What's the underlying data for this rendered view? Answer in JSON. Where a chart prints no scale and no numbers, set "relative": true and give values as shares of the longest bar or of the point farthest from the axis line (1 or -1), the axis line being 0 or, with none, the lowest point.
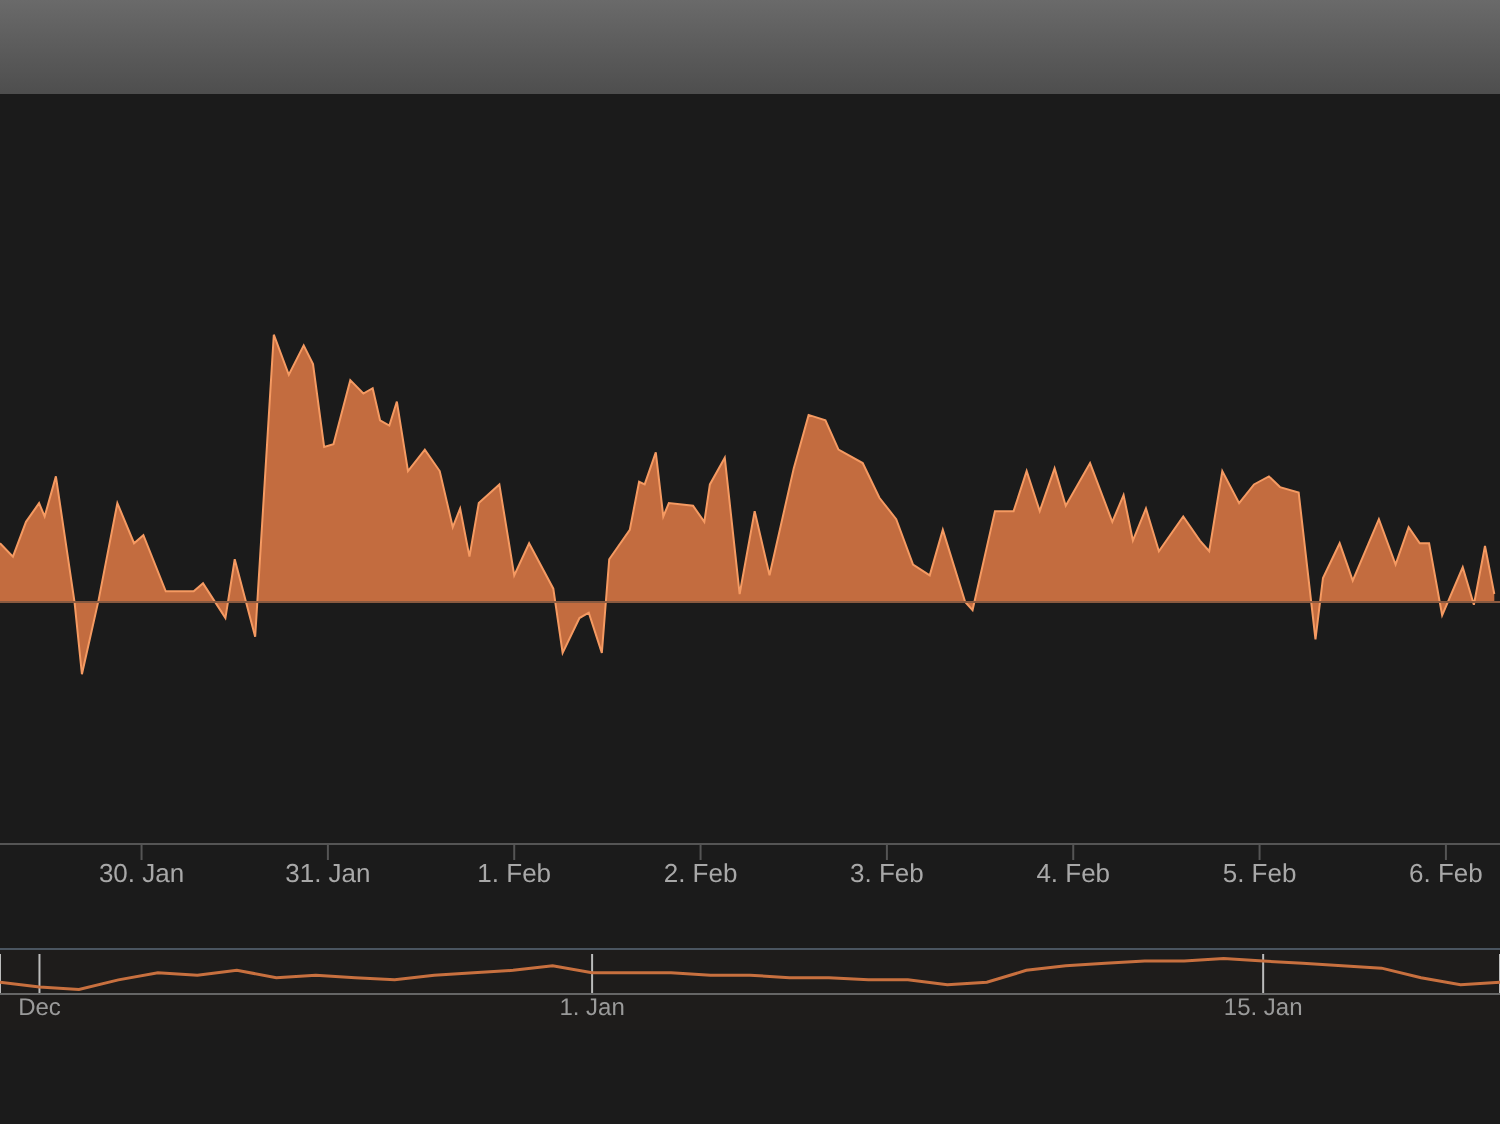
{
  "chart_data": [
    {
      "type": "area",
      "relative": true,
      "color": "#e07a45",
      "legend": false,
      "grid": false,
      "ref_lines": [
        {
          "axis": "y",
          "value": 0,
          "color": "#8a5a40"
        }
      ],
      "x": [
        "--01-29T05:46",
        "--01-29T07:26",
        "--01-29T09:07",
        "--01-29T10:48",
        "--01-29T11:31",
        "--01-29T12:58",
        "--01-29T15:22",
        "--01-29T16:19",
        "--01-29T18:29",
        "--01-29T20:53",
        "--01-29T23:02",
        "--01-30T00:14",
        "--01-30T03:07",
        "--01-30T06:43",
        "--01-30T07:55",
        "--01-30T10:48",
        "--01-30T12:00",
        "--01-30T14:38",
        "--01-30T17:02",
        "--01-30T18:58",
        "--01-30T20:53",
        "--01-30T22:05",
        "--01-30T23:31",
        "--01-31T00:43",
        "--01-31T02:53",
        "--01-31T04:34",
        "--01-31T05:46",
        "--01-31T06:43",
        "--01-31T07:55",
        "--01-31T08:53",
        "--01-31T10:19",
        "--01-31T12:29",
        "--01-31T14:24",
        "--01-31T16:05",
        "--01-31T17:02",
        "--01-31T18:14",
        "--01-31T19:26",
        "--01-31T22:05",
        "--02-01T00:00",
        "--02-01T01:55",
        "--02-01T05:02",
        "--02-01T06:14",
        "--02-01T08:24",
        "--02-01T09:36",
        "--02-01T11:17",
        "--02-01T12:14",
        "--02-01T14:53",
        "--02-01T16:05",
        "--02-01T16:48",
        "--02-01T18:14",
        "--02-01T19:12",
        "--02-01T19:55",
        "--02-01T23:02",
        "--02-02T00:29",
        "--02-02T01:12",
        "--02-02T03:07",
        "--02-02T05:02",
        "--02-02T06:58",
        "--02-02T08:53",
        "--02-02T12:00",
        "--02-02T13:55",
        "--02-02T16:05",
        "--02-02T17:46",
        "--02-02T20:53",
        "--02-02T23:02",
        "--02-03T01:12",
        "--02-03T03:22",
        "--02-03T05:31",
        "--02-03T07:12",
        "--02-03T10:05",
        "--02-03T11:02",
        "--02-03T13:55",
        "--02-03T16:19",
        "--02-03T18:00",
        "--02-03T19:41",
        "--02-03T21:36",
        "--02-03T23:02",
        "--02-04T02:10",
        "--02-04T05:02",
        "--02-04T06:29",
        "--02-04T07:41",
        "--02-04T09:22",
        "--02-04T11:02",
        "--02-04T14:10",
        "--02-04T16:19",
        "--02-04T17:31",
        "--02-04T19:12",
        "--02-04T21:22",
        "--02-04T23:17",
        "--02-05T01:12",
        "--02-05T02:38",
        "--02-05T05:02",
        "--02-05T07:12",
        "--02-05T08:10",
        "--02-05T10:19",
        "--02-05T12:00",
        "--02-05T15:22",
        "--02-05T17:31",
        "--02-05T19:12",
        "--02-05T20:38",
        "--02-05T21:50",
        "--02-05T23:31",
        "--02-06T02:10",
        "--02-06T03:36",
        "--02-06T05:02",
        "--02-06T06:14"
      ],
      "values": [
        0.22,
        0.17,
        0.3,
        0.37,
        0.32,
        0.47,
        0,
        -0.27,
        0.01,
        0.37,
        0.22,
        0.25,
        0.04,
        0.04,
        0.07,
        -0.06,
        0.16,
        -0.13,
        1.0,
        0.85,
        0.96,
        0.89,
        0.58,
        0.59,
        0.83,
        0.78,
        0.8,
        0.68,
        0.66,
        0.75,
        0.49,
        0.57,
        0.49,
        0.28,
        0.35,
        0.17,
        0.37,
        0.44,
        0.1,
        0.22,
        0.05,
        -0.19,
        -0.06,
        -0.04,
        -0.19,
        0.16,
        0.27,
        0.45,
        0.44,
        0.56,
        0.32,
        0.37,
        0.36,
        0.3,
        0.44,
        0.54,
        0.03,
        0.34,
        0.1,
        0.5,
        0.7,
        0.68,
        0.57,
        0.52,
        0.39,
        0.31,
        0.14,
        0.1,
        0.27,
        0,
        -0.03,
        0.34,
        0.34,
        0.49,
        0.34,
        0.5,
        0.36,
        0.52,
        0.3,
        0.4,
        0.23,
        0.35,
        0.19,
        0.32,
        0.23,
        0.19,
        0.49,
        0.37,
        0.44,
        0.47,
        0.43,
        0.41,
        -0.14,
        0.09,
        0.22,
        0.08,
        0.31,
        0.14,
        0.28,
        0.22,
        0.22,
        -0.05,
        0.13,
        -0.01,
        0.21,
        0.03
      ],
      "xlim": [
        "--01-29T05:46",
        "--02-06T06:58"
      ],
      "xticks": [
        {
          "value": "--01-30",
          "label": "30. Jan"
        },
        {
          "value": "--01-31",
          "label": "31. Jan"
        },
        {
          "value": "--02-01",
          "label": "1. Feb"
        },
        {
          "value": "--02-02",
          "label": "2. Feb"
        },
        {
          "value": "--02-03",
          "label": "3. Feb"
        },
        {
          "value": "--02-04",
          "label": "4. Feb"
        },
        {
          "value": "--02-05",
          "label": "5. Feb"
        },
        {
          "value": "--02-06",
          "label": "6. Feb"
        }
      ]
    },
    {
      "type": "line",
      "relative": true,
      "color": "#c8703f",
      "legend": false,
      "grid": "x",
      "categories": [
        null,
        "Dec",
        null,
        null,
        null,
        null,
        null,
        null,
        null,
        null,
        null,
        null,
        null,
        null,
        null,
        "1. Jan",
        null,
        null,
        null,
        null,
        null,
        null,
        null,
        null,
        null,
        null,
        null,
        null,
        null,
        null,
        null,
        null,
        "15. Jan",
        null,
        null,
        null,
        null,
        null,
        null
      ],
      "values": [
        0.23,
        0.08,
        0,
        0.31,
        0.54,
        0.46,
        0.62,
        0.38,
        0.46,
        0.38,
        0.31,
        0.46,
        0.54,
        0.62,
        0.77,
        0.54,
        0.54,
        0.54,
        0.46,
        0.46,
        0.38,
        0.38,
        0.31,
        0.31,
        0.15,
        0.23,
        0.62,
        0.77,
        0.85,
        0.92,
        0.92,
        1,
        0.92,
        0.85,
        0.77,
        0.69,
        0.38,
        0.15,
        0.23
      ]
    }
  ]
}
